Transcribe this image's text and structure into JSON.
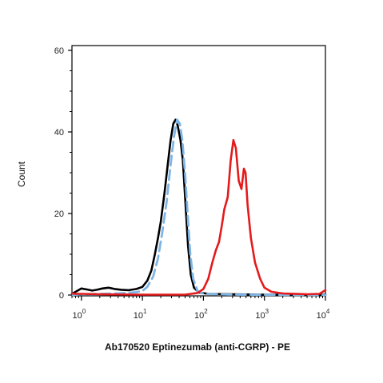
{
  "chart_data": {
    "type": "line",
    "title": "",
    "xlabel": "Ab170520 Eptinezumab (anti-CGRP) - PE",
    "ylabel": "Count",
    "x_scale": "log",
    "xlim": [
      0.7,
      10000
    ],
    "ylim": [
      0,
      60
    ],
    "x_ticks": [
      {
        "value": 1,
        "base": "10",
        "exp": "0"
      },
      {
        "value": 10,
        "base": "10",
        "exp": "1"
      },
      {
        "value": 100,
        "base": "10",
        "exp": "2"
      },
      {
        "value": 1000,
        "base": "10",
        "exp": "3"
      },
      {
        "value": 10000,
        "base": "10",
        "exp": "4"
      }
    ],
    "y_ticks": [
      {
        "value": 0,
        "label": "0"
      },
      {
        "value": 20,
        "label": "20"
      },
      {
        "value": 40,
        "label": "40"
      },
      {
        "value": 60,
        "label": "60"
      }
    ],
    "grid": false,
    "legend": "none",
    "series": [
      {
        "color": "#000000",
        "style": "solid",
        "points": [
          [
            0.7,
            0.3
          ],
          [
            0.85,
            1.0
          ],
          [
            1.0,
            1.6
          ],
          [
            1.2,
            1.4
          ],
          [
            1.5,
            1.1
          ],
          [
            1.8,
            1.3
          ],
          [
            2.2,
            1.6
          ],
          [
            2.8,
            1.8
          ],
          [
            3.5,
            1.5
          ],
          [
            4.5,
            1.3
          ],
          [
            6.0,
            1.2
          ],
          [
            8.0,
            1.5
          ],
          [
            10,
            2.0
          ],
          [
            12,
            3.5
          ],
          [
            14,
            6.0
          ],
          [
            16,
            10.0
          ],
          [
            18,
            14.0
          ],
          [
            20,
            18.0
          ],
          [
            23,
            25.0
          ],
          [
            26,
            32.0
          ],
          [
            29,
            38.0
          ],
          [
            32,
            42.0
          ],
          [
            35,
            43.0
          ],
          [
            38,
            41.5
          ],
          [
            42,
            38.0
          ],
          [
            46,
            33.0
          ],
          [
            51,
            22.0
          ],
          [
            56,
            12.0
          ],
          [
            62,
            5.0
          ],
          [
            70,
            1.8
          ],
          [
            85,
            0.6
          ],
          [
            120,
            0.3
          ],
          [
            300,
            0.2
          ],
          [
            1000,
            0.1
          ],
          [
            10000,
            0.1
          ]
        ]
      },
      {
        "color": "#7fb6e6",
        "style": "dashed",
        "points": [
          [
            0.7,
            0.0
          ],
          [
            1.0,
            0.2
          ],
          [
            2.0,
            0.3
          ],
          [
            4.0,
            0.4
          ],
          [
            8.0,
            0.7
          ],
          [
            10,
            1.0
          ],
          [
            12,
            2.0
          ],
          [
            15,
            4.5
          ],
          [
            18,
            9.0
          ],
          [
            21,
            15.0
          ],
          [
            25,
            23.0
          ],
          [
            29,
            32.0
          ],
          [
            33,
            39.0
          ],
          [
            37,
            43.0
          ],
          [
            41,
            42.0
          ],
          [
            45,
            38.0
          ],
          [
            50,
            30.0
          ],
          [
            55,
            20.0
          ],
          [
            61,
            10.0
          ],
          [
            68,
            4.0
          ],
          [
            80,
            1.0
          ],
          [
            100,
            0.3
          ],
          [
            300,
            0.1
          ],
          [
            10000,
            0.0
          ]
        ]
      },
      {
        "color": "#e41a1c",
        "style": "solid",
        "points": [
          [
            0.7,
            0.4
          ],
          [
            0.8,
            0.3
          ],
          [
            1.0,
            0.3
          ],
          [
            2.0,
            0.2
          ],
          [
            10,
            0.1
          ],
          [
            50,
            0.1
          ],
          [
            80,
            0.5
          ],
          [
            100,
            1.5
          ],
          [
            120,
            4.0
          ],
          [
            140,
            8.0
          ],
          [
            160,
            11.0
          ],
          [
            180,
            13.0
          ],
          [
            200,
            17.0
          ],
          [
            220,
            21.0
          ],
          [
            250,
            24.0
          ],
          [
            280,
            33.0
          ],
          [
            310,
            38.0
          ],
          [
            340,
            36.0
          ],
          [
            380,
            28.0
          ],
          [
            420,
            26.0
          ],
          [
            460,
            31.0
          ],
          [
            490,
            30.0
          ],
          [
            530,
            22.0
          ],
          [
            600,
            14.0
          ],
          [
            700,
            8.0
          ],
          [
            850,
            4.0
          ],
          [
            1000,
            1.8
          ],
          [
            1300,
            0.8
          ],
          [
            2000,
            0.4
          ],
          [
            5000,
            0.2
          ],
          [
            8000,
            0.3
          ],
          [
            10000,
            1.2
          ]
        ]
      }
    ]
  }
}
